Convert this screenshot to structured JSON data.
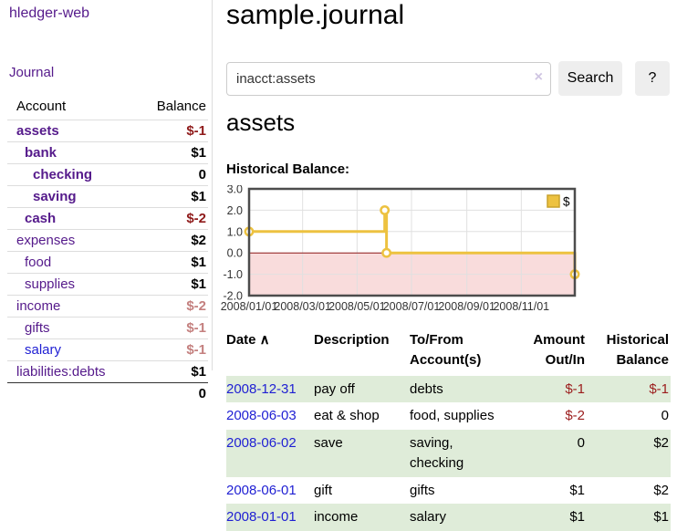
{
  "app": {
    "brand": "hledger-web",
    "journal_link": "Journal"
  },
  "sidebar": {
    "account_header": "Account",
    "balance_header": "Balance",
    "accounts": [
      {
        "name": "assets",
        "indent": 1,
        "strong": true,
        "blue": false,
        "balance": "$-1",
        "bal_class": "neg-strong"
      },
      {
        "name": "bank",
        "indent": 2,
        "strong": true,
        "blue": false,
        "balance": "$1",
        "bal_class": "pos"
      },
      {
        "name": "checking",
        "indent": 3,
        "strong": true,
        "blue": false,
        "balance": "0",
        "bal_class": "pos"
      },
      {
        "name": "saving",
        "indent": 3,
        "strong": true,
        "blue": false,
        "balance": "$1",
        "bal_class": "pos"
      },
      {
        "name": "cash",
        "indent": 2,
        "strong": true,
        "blue": false,
        "balance": "$-2",
        "bal_class": "neg-strong"
      },
      {
        "name": "expenses",
        "indent": 1,
        "strong": false,
        "blue": false,
        "balance": "$2",
        "bal_class": "pos"
      },
      {
        "name": "food",
        "indent": 2,
        "strong": false,
        "blue": false,
        "balance": "$1",
        "bal_class": "pos"
      },
      {
        "name": "supplies",
        "indent": 2,
        "strong": false,
        "blue": false,
        "balance": "$1",
        "bal_class": "pos"
      },
      {
        "name": "income",
        "indent": 1,
        "strong": false,
        "blue": false,
        "balance": "$-2",
        "bal_class": "neg-light"
      },
      {
        "name": "gifts",
        "indent": 2,
        "strong": false,
        "blue": false,
        "balance": "$-1",
        "bal_class": "neg-light"
      },
      {
        "name": "salary",
        "indent": 2,
        "strong": false,
        "blue": true,
        "balance": "$-1",
        "bal_class": "neg-light"
      },
      {
        "name": "liabilities:debts",
        "indent": 1,
        "strong": false,
        "blue": false,
        "balance": "$1",
        "bal_class": "pos"
      }
    ],
    "total": "0"
  },
  "main": {
    "title": "sample.journal",
    "search": {
      "value": "inacct:assets",
      "clear": "×",
      "search_label": "Search",
      "help_label": "?"
    },
    "heading": "assets",
    "section_label": "Historical Balance:"
  },
  "chart_data": {
    "type": "line",
    "step": true,
    "title": "Historical Balance",
    "series": [
      {
        "name": "$",
        "color": "#EDC240",
        "points": [
          [
            "2008-01-01",
            1
          ],
          [
            "2008-06-01",
            2
          ],
          [
            "2008-06-03",
            0
          ],
          [
            "2008-12-31",
            -1
          ]
        ]
      }
    ],
    "x_range": [
      "2008-01-01",
      "2008-12-31"
    ],
    "x_ticks": [
      "2008/01/01",
      "2008/03/01",
      "2008/05/01",
      "2008/07/01",
      "2008/09/01",
      "2008/11/01"
    ],
    "y_ticks": [
      "3.0",
      "2.0",
      "1.0",
      "0.0",
      "-1.0",
      "-2.0"
    ],
    "ylim": [
      -2,
      3
    ],
    "grid": true,
    "legend_position": "top-right",
    "colors": {
      "line": "#EDC240",
      "marker_fill": "#ffffff",
      "legend_box_border": "#c9a22c",
      "negative_fill": "#f9dcdc",
      "zero_line": "#8c1717",
      "plot_border": "#4c4c4c",
      "gridline": "#e0e0e0",
      "tick_text": "#333333"
    }
  },
  "register": {
    "columns": [
      {
        "label": "Date",
        "sort": "∧",
        "align": "left"
      },
      {
        "label": "Description",
        "align": "left"
      },
      {
        "label": "To/From Account(s)",
        "align": "left"
      },
      {
        "label": "Amount Out/In",
        "align": "right"
      },
      {
        "label": "Historical Balance",
        "align": "right"
      }
    ],
    "rows": [
      {
        "date": "2008-12-31",
        "description": "pay off",
        "accounts": [
          "debts"
        ],
        "amount": "$-1",
        "amount_neg": true,
        "balance": "$-1",
        "balance_neg": true
      },
      {
        "date": "2008-06-03",
        "description": "eat & shop",
        "accounts": [
          "food, supplies"
        ],
        "amount": "$-2",
        "amount_neg": true,
        "balance": "0",
        "balance_neg": false
      },
      {
        "date": "2008-06-02",
        "description": "save",
        "accounts": [
          "saving,",
          "checking"
        ],
        "amount": "0",
        "amount_neg": false,
        "balance": "$2",
        "balance_neg": false
      },
      {
        "date": "2008-06-01",
        "description": "gift",
        "accounts": [
          "gifts"
        ],
        "amount": "$1",
        "amount_neg": false,
        "balance": "$2",
        "balance_neg": false
      },
      {
        "date": "2008-01-01",
        "description": "income",
        "accounts": [
          "salary"
        ],
        "amount": "$1",
        "amount_neg": false,
        "balance": "$1",
        "balance_neg": false
      }
    ]
  }
}
